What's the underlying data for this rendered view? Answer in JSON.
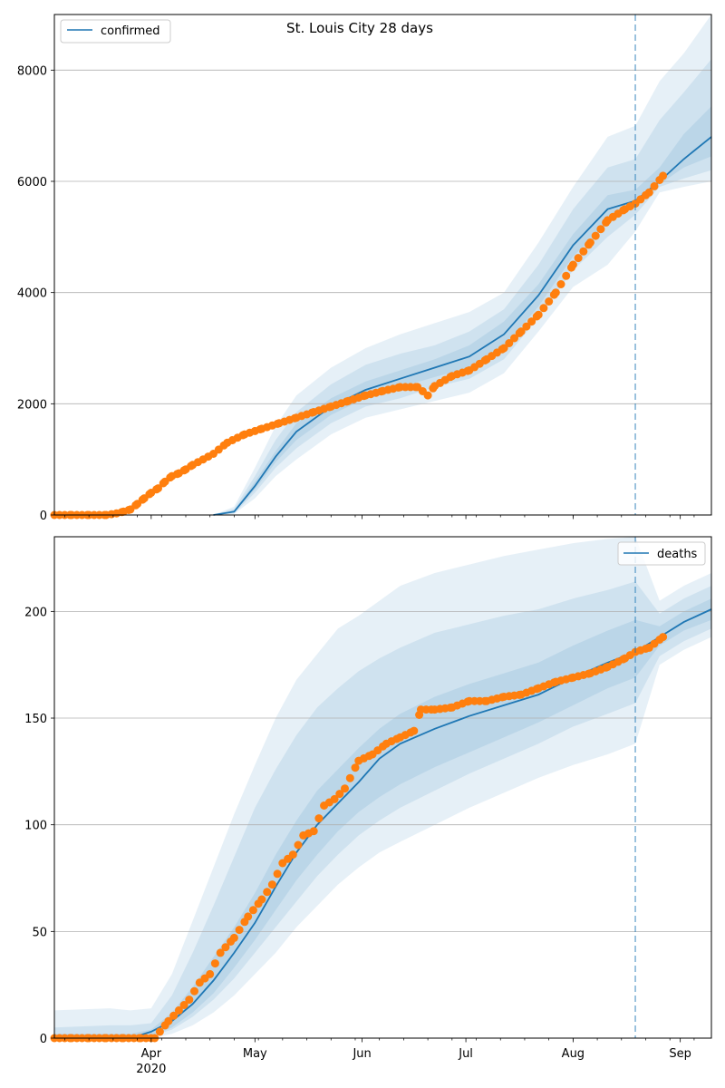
{
  "chart_data": [
    {
      "type": "line",
      "title": "St. Louis City 28 days",
      "xlabel": "",
      "ylabel": "",
      "ylim": [
        0,
        9000
      ],
      "yticks": [
        0,
        2000,
        4000,
        6000,
        8000
      ],
      "ytick_labels": [
        "0",
        "2000",
        "4000",
        "6000",
        "8000"
      ],
      "grid": "horizontal",
      "legend": {
        "position": "top-left",
        "entries": [
          "confirmed"
        ]
      },
      "forecast_start_day": 168,
      "series": [
        {
          "name": "confirmed",
          "kind": "model-median",
          "color": "#1f77b4",
          "x": [
            46,
            52,
            58,
            64,
            70,
            80,
            90,
            100,
            110,
            120,
            130,
            140,
            150,
            160,
            168,
            175,
            182,
            190
          ],
          "y": [
            0,
            60,
            520,
            1050,
            1500,
            1950,
            2250,
            2450,
            2650,
            2850,
            3250,
            3950,
            4850,
            5500,
            5650,
            6000,
            6400,
            6800
          ]
        },
        {
          "name": "observed",
          "kind": "observed-points",
          "color": "#ff7f0e",
          "x": [
            0,
            5,
            10,
            15,
            18,
            20,
            22,
            24,
            26,
            28,
            30,
            32,
            34,
            36,
            38,
            40,
            43,
            46,
            50,
            55,
            60,
            65,
            70,
            75,
            80,
            85,
            90,
            95,
            100,
            105,
            108,
            110,
            115,
            120,
            125,
            130,
            135,
            140,
            145,
            150,
            155,
            160,
            165,
            168,
            172,
            176
          ],
          "y": [
            0,
            0,
            0,
            0,
            30,
            60,
            100,
            200,
            300,
            400,
            480,
            600,
            700,
            750,
            820,
            900,
            1000,
            1100,
            1300,
            1450,
            1550,
            1650,
            1750,
            1850,
            1950,
            2050,
            2150,
            2230,
            2300,
            2300,
            2150,
            2320,
            2500,
            2600,
            2800,
            3000,
            3300,
            3600,
            4000,
            4500,
            4900,
            5300,
            5500,
            5600,
            5800,
            6100
          ]
        }
      ],
      "bands": [
        {
          "name": "outer",
          "color": "#1f77b4",
          "opacity": 0.11,
          "x": [
            46,
            52,
            58,
            64,
            70,
            80,
            90,
            100,
            110,
            120,
            130,
            140,
            150,
            160,
            168,
            175,
            182,
            190
          ],
          "lower": [
            0,
            20,
            300,
            700,
            1000,
            1450,
            1750,
            1900,
            2050,
            2200,
            2550,
            3300,
            4100,
            4500,
            5100,
            5800,
            5900,
            6000
          ],
          "upper": [
            0,
            150,
            850,
            1600,
            2150,
            2650,
            3000,
            3250,
            3450,
            3650,
            4000,
            4900,
            5900,
            6800,
            7000,
            7800,
            8300,
            9000
          ]
        },
        {
          "name": "middle",
          "color": "#1f77b4",
          "opacity": 0.11,
          "x": [
            46,
            52,
            58,
            64,
            70,
            80,
            90,
            100,
            110,
            120,
            130,
            140,
            150,
            160,
            168,
            175,
            182,
            190
          ],
          "lower": [
            0,
            30,
            400,
            850,
            1200,
            1650,
            1950,
            2100,
            2300,
            2450,
            2800,
            3550,
            4400,
            5000,
            5400,
            5900,
            6050,
            6200
          ],
          "upper": [
            0,
            110,
            700,
            1350,
            1850,
            2350,
            2700,
            2900,
            3050,
            3300,
            3700,
            4500,
            5500,
            6250,
            6400,
            7100,
            7600,
            8200
          ]
        },
        {
          "name": "inner",
          "color": "#1f77b4",
          "opacity": 0.11,
          "x": [
            46,
            52,
            58,
            64,
            70,
            80,
            90,
            100,
            110,
            120,
            130,
            140,
            150,
            160,
            168,
            175,
            182,
            190
          ],
          "lower": [
            0,
            45,
            460,
            950,
            1350,
            1800,
            2100,
            2300,
            2480,
            2650,
            3020,
            3750,
            4650,
            5250,
            5550,
            5950,
            6250,
            6450
          ],
          "upper": [
            0,
            80,
            600,
            1150,
            1650,
            2100,
            2400,
            2600,
            2800,
            3050,
            3480,
            4150,
            5050,
            5750,
            5850,
            6250,
            6850,
            7350
          ]
        }
      ]
    },
    {
      "type": "line",
      "title": "",
      "xlabel": "",
      "ylabel": "",
      "ylim": [
        0,
        235
      ],
      "yticks": [
        0,
        50,
        100,
        150,
        200
      ],
      "ytick_labels": [
        "0",
        "50",
        "100",
        "150",
        "200"
      ],
      "xtick_labels": [
        {
          "day": 28,
          "label": "Apr",
          "sub": "2020"
        },
        {
          "day": 58,
          "label": "May",
          "sub": ""
        },
        {
          "day": 89,
          "label": "Jun",
          "sub": ""
        },
        {
          "day": 119,
          "label": "Jul",
          "sub": ""
        },
        {
          "day": 150,
          "label": "Aug",
          "sub": ""
        },
        {
          "day": 181,
          "label": "Sep",
          "sub": ""
        }
      ],
      "grid": "horizontal",
      "legend": {
        "position": "top-right",
        "entries": [
          "deaths"
        ]
      },
      "forecast_start_day": 168,
      "series": [
        {
          "name": "deaths",
          "kind": "model-median",
          "color": "#1f77b4",
          "x": [
            16,
            22,
            28,
            34,
            40,
            46,
            52,
            58,
            64,
            70,
            76,
            82,
            88,
            94,
            100,
            110,
            120,
            130,
            140,
            150,
            160,
            168,
            175,
            182,
            190
          ],
          "y": [
            0,
            0,
            3,
            8,
            16,
            27,
            40,
            54,
            71,
            87,
            100,
            110,
            120,
            131,
            138,
            145,
            151,
            156,
            161,
            169,
            176,
            181,
            188,
            195,
            201
          ]
        },
        {
          "name": "observed",
          "kind": "observed-points",
          "color": "#ff7f0e",
          "x": [
            0,
            5,
            10,
            15,
            20,
            25,
            29,
            33,
            36,
            39,
            42,
            45,
            48,
            52,
            56,
            60,
            63,
            66,
            69,
            72,
            75,
            78,
            81,
            84,
            88,
            92,
            96,
            100,
            104,
            106,
            110,
            115,
            120,
            125,
            130,
            135,
            140,
            145,
            150,
            155,
            160,
            165,
            168,
            172,
            176
          ],
          "y": [
            0,
            0,
            0,
            0,
            0,
            0,
            0,
            8,
            13,
            18,
            26,
            30,
            40,
            47,
            57,
            65,
            72,
            82,
            86,
            95,
            97,
            109,
            112,
            117,
            130,
            133,
            138,
            141,
            144,
            154,
            154,
            155,
            158,
            158,
            160,
            161,
            164,
            167,
            169,
            171,
            174,
            178,
            181,
            183,
            188
          ]
        }
      ],
      "bands": [
        {
          "name": "outer",
          "color": "#1f77b4",
          "opacity": 0.11,
          "x": [
            0,
            16,
            22,
            28,
            34,
            40,
            46,
            52,
            58,
            64,
            70,
            76,
            82,
            88,
            94,
            100,
            110,
            120,
            130,
            140,
            150,
            160,
            168,
            175,
            182,
            190
          ],
          "lower": [
            0,
            0,
            0,
            0,
            2,
            6,
            12,
            20,
            30,
            40,
            52,
            62,
            72,
            80,
            87,
            92,
            100,
            108,
            115,
            122,
            128,
            133,
            138,
            175,
            182,
            188
          ],
          "upper": [
            13,
            14,
            13,
            14,
            30,
            55,
            80,
            105,
            128,
            150,
            168,
            180,
            192,
            198,
            205,
            212,
            218,
            222,
            226,
            229,
            232,
            234,
            235,
            205,
            212,
            218
          ]
        },
        {
          "name": "middle",
          "color": "#1f77b4",
          "opacity": 0.11,
          "x": [
            0,
            16,
            22,
            28,
            34,
            40,
            46,
            52,
            58,
            64,
            70,
            76,
            82,
            88,
            94,
            100,
            110,
            120,
            130,
            140,
            150,
            160,
            168,
            175,
            182,
            190
          ],
          "lower": [
            0,
            0,
            0,
            1,
            4,
            10,
            18,
            28,
            40,
            52,
            64,
            76,
            86,
            95,
            102,
            108,
            116,
            124,
            131,
            138,
            146,
            152,
            157,
            179,
            186,
            192
          ],
          "upper": [
            5,
            6,
            6,
            7,
            20,
            40,
            62,
            85,
            108,
            126,
            142,
            155,
            164,
            172,
            178,
            183,
            190,
            194,
            198,
            201,
            206,
            210,
            214,
            199,
            206,
            212
          ]
        },
        {
          "name": "inner",
          "color": "#1f77b4",
          "opacity": 0.11,
          "x": [
            0,
            16,
            22,
            28,
            34,
            40,
            46,
            52,
            58,
            64,
            70,
            76,
            82,
            88,
            94,
            100,
            110,
            120,
            130,
            140,
            150,
            160,
            168,
            175,
            182,
            190
          ],
          "lower": [
            0,
            0,
            0,
            1,
            5,
            12,
            21,
            33,
            46,
            60,
            74,
            86,
            97,
            106,
            113,
            119,
            127,
            134,
            141,
            148,
            156,
            164,
            169,
            184,
            191,
            196
          ],
          "upper": [
            2,
            2,
            2,
            4,
            12,
            24,
            38,
            52,
            68,
            86,
            102,
            116,
            126,
            136,
            145,
            152,
            160,
            166,
            171,
            176,
            184,
            191,
            196,
            193,
            200,
            206
          ]
        }
      ]
    }
  ]
}
